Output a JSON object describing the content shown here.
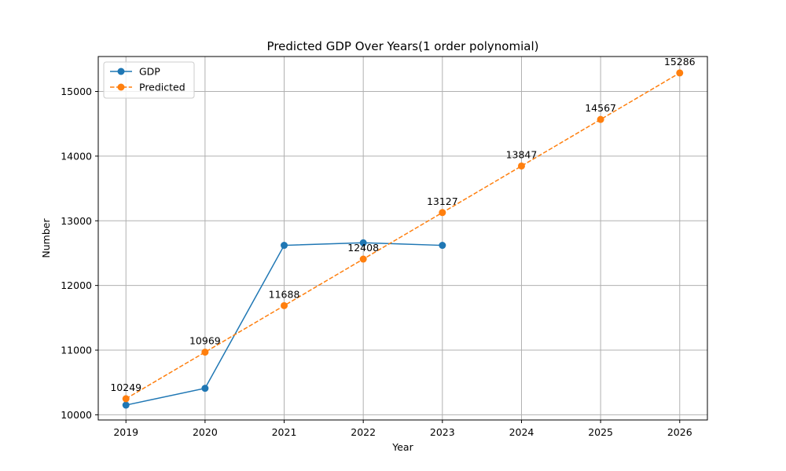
{
  "chart_data": {
    "type": "line",
    "title": "Predicted GDP Over Years(1 order polynomial)",
    "xlabel": "Year",
    "ylabel": "Number",
    "x_ticks": [
      2019,
      2020,
      2021,
      2022,
      2023,
      2024,
      2025,
      2026
    ],
    "y_ticks": [
      10000,
      11000,
      12000,
      13000,
      14000,
      15000
    ],
    "xlim": [
      2018.65,
      2026.35
    ],
    "ylim": [
      9920,
      15540
    ],
    "grid": true,
    "legend_position": "upper-left",
    "series": [
      {
        "name": "GDP",
        "color": "#1f77b4",
        "line_style": "solid",
        "marker": "circle",
        "x": [
          2019,
          2020,
          2021,
          2022,
          2023
        ],
        "y": [
          10150,
          10410,
          12620,
          12660,
          12620
        ]
      },
      {
        "name": "Predicted",
        "color": "#ff7f0e",
        "line_style": "dashed",
        "marker": "circle",
        "x": [
          2019,
          2020,
          2021,
          2022,
          2023,
          2024,
          2025,
          2026
        ],
        "y": [
          10249,
          10969,
          11688,
          12408,
          13127,
          13847,
          14567,
          15286
        ],
        "labels": [
          "10249",
          "10969",
          "11688",
          "12408",
          "13127",
          "13847",
          "14567",
          "15286"
        ]
      }
    ]
  }
}
